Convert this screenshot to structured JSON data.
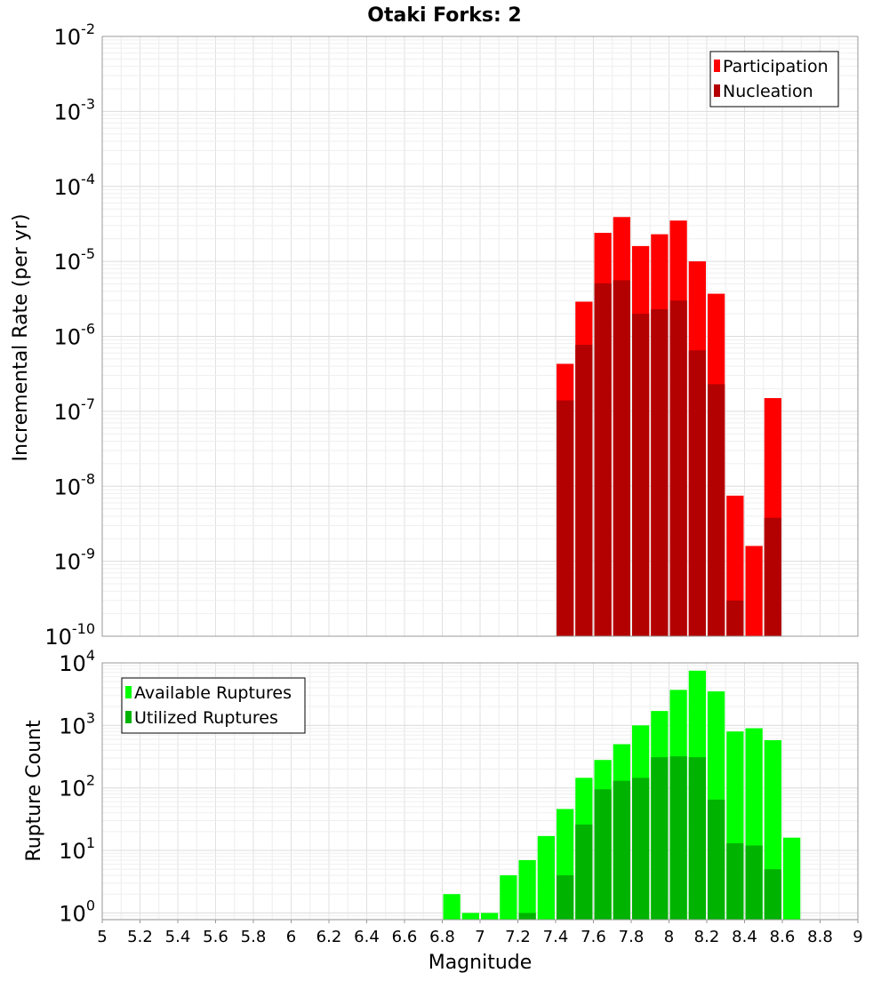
{
  "chart_data": [
    {
      "type": "bar",
      "title": "Otaki Forks: 2",
      "xlabel": "",
      "ylabel": "Incremental Rate (per yr)",
      "yscale": "log",
      "xlim": [
        5,
        9
      ],
      "ylim": [
        1e-10,
        0.01
      ],
      "grid": true,
      "bar_width": 0.1,
      "legend": {
        "position": "top-right"
      },
      "y_ticks": [
        {
          "base": "10",
          "exp": "-10"
        },
        {
          "base": "10",
          "exp": "-9"
        },
        {
          "base": "10",
          "exp": "-8"
        },
        {
          "base": "10",
          "exp": "-7"
        },
        {
          "base": "10",
          "exp": "-6"
        },
        {
          "base": "10",
          "exp": "-5"
        },
        {
          "base": "10",
          "exp": "-4"
        },
        {
          "base": "10",
          "exp": "-3"
        },
        {
          "base": "10",
          "exp": "-2"
        }
      ],
      "x": [
        7.45,
        7.55,
        7.65,
        7.75,
        7.85,
        7.95,
        8.05,
        8.15,
        8.25,
        8.35,
        8.45,
        8.55
      ],
      "series": [
        {
          "name": "Participation",
          "color": "#ff0000",
          "values": [
            4.3e-07,
            2.9e-06,
            2.4e-05,
            3.9e-05,
            1.6e-05,
            2.3e-05,
            3.5e-05,
            1e-05,
            3.7e-06,
            7.5e-09,
            1.6e-09,
            1.5e-07
          ]
        },
        {
          "name": "Nucleation",
          "color": "#b30000",
          "values": [
            1.4e-07,
            7.7e-07,
            5.1e-06,
            5.6e-06,
            2e-06,
            2.3e-06,
            3e-06,
            6.5e-07,
            2.3e-07,
            3e-10,
            null,
            3.8e-09
          ]
        }
      ]
    },
    {
      "type": "bar",
      "title": "",
      "xlabel": "Magnitude",
      "ylabel": "Rupture Count",
      "yscale": "log",
      "xlim": [
        5,
        9
      ],
      "ylim": [
        0.78,
        10000
      ],
      "grid": true,
      "bar_width": 0.1,
      "legend": {
        "position": "top-left"
      },
      "x_ticks": [
        "5",
        "5.2",
        "5.4",
        "5.6",
        "5.8",
        "6",
        "6.2",
        "6.4",
        "6.6",
        "6.8",
        "7",
        "7.2",
        "7.4",
        "7.6",
        "7.8",
        "8",
        "8.2",
        "8.4",
        "8.6",
        "8.8",
        "9"
      ],
      "y_ticks": [
        {
          "base": "10",
          "exp": "0"
        },
        {
          "base": "10",
          "exp": "1"
        },
        {
          "base": "10",
          "exp": "2"
        },
        {
          "base": "10",
          "exp": "3"
        },
        {
          "base": "10",
          "exp": "4"
        }
      ],
      "x": [
        6.85,
        6.95,
        7.05,
        7.15,
        7.25,
        7.35,
        7.45,
        7.55,
        7.65,
        7.75,
        7.85,
        7.95,
        8.05,
        8.15,
        8.25,
        8.35,
        8.45,
        8.55,
        8.65
      ],
      "series": [
        {
          "name": "Available Ruptures",
          "color": "#00ff00",
          "values": [
            2,
            1,
            1,
            4,
            7,
            17,
            46,
            145,
            280,
            500,
            1000,
            1700,
            3700,
            7500,
            3500,
            800,
            900,
            580,
            16
          ]
        },
        {
          "name": "Utilized Ruptures",
          "color": "#00b300",
          "values": [
            null,
            null,
            null,
            null,
            1,
            null,
            4,
            26,
            95,
            130,
            145,
            310,
            320,
            310,
            65,
            13,
            12,
            5,
            null
          ]
        }
      ]
    }
  ]
}
